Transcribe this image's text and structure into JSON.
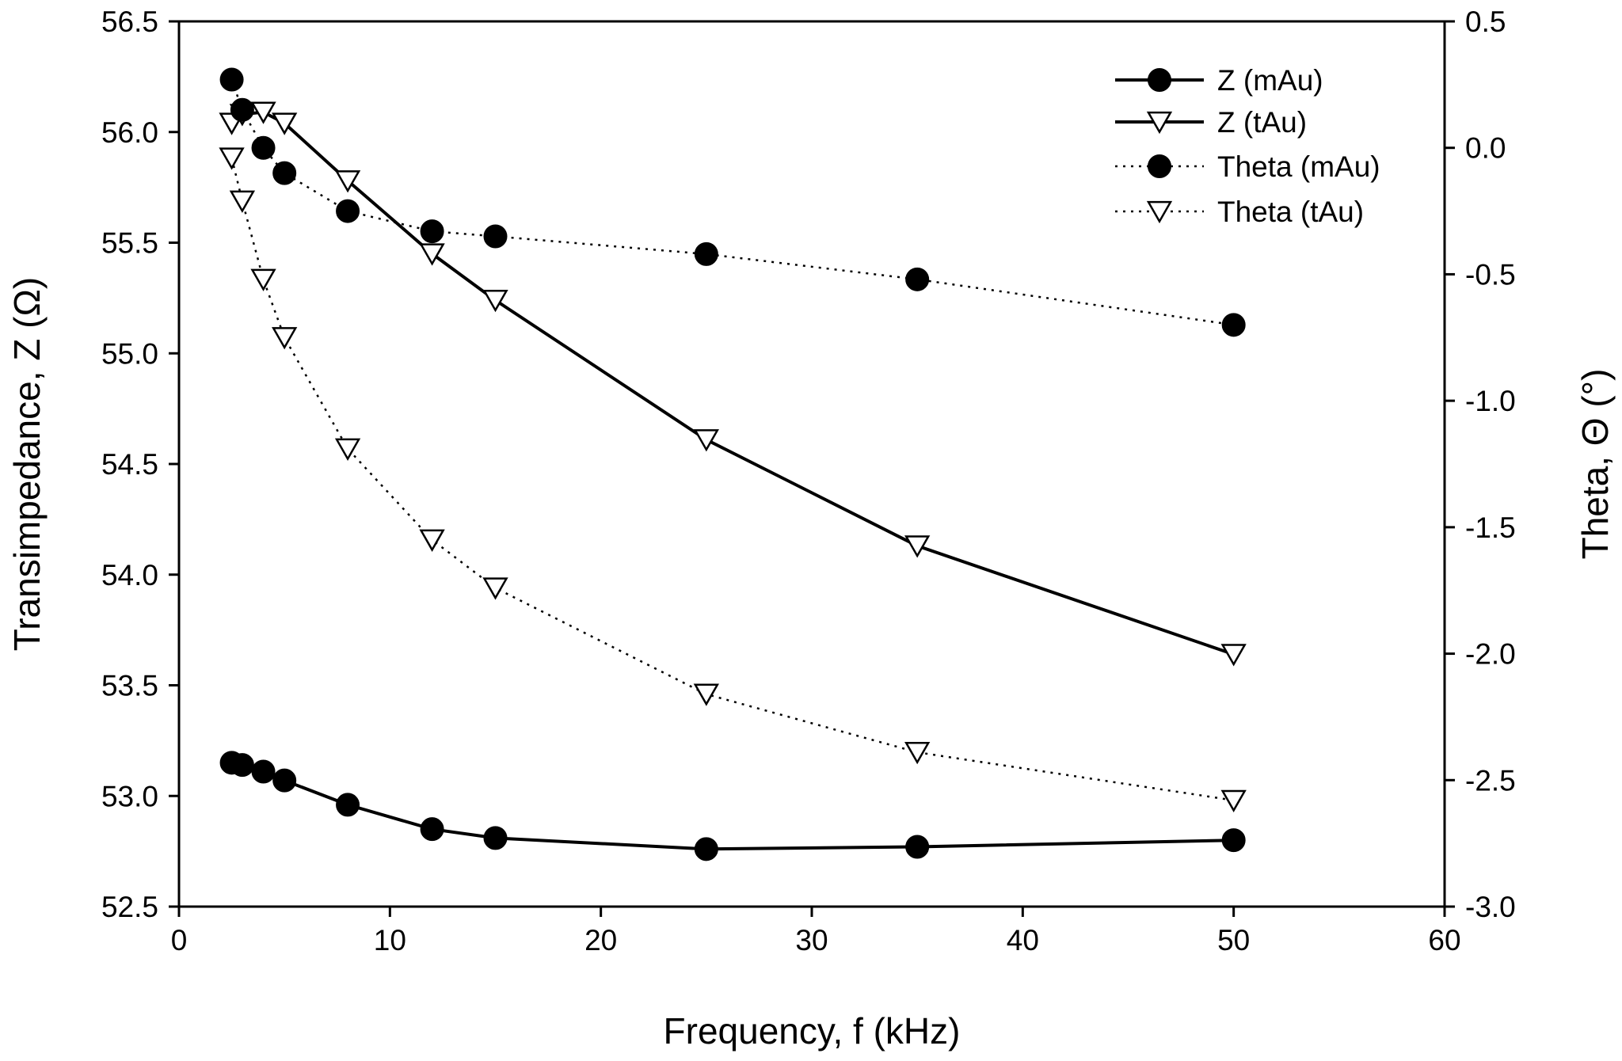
{
  "chart_data": {
    "type": "line",
    "xlabel": "Frequency, f  (kHz)",
    "ylabel_left": "Transimpedance, Z  (Ω)",
    "ylabel_right": "Theta, Θ (°)",
    "xlim": [
      0,
      60
    ],
    "ylim_left": [
      52.5,
      56.5
    ],
    "ylim_right": [
      -3.0,
      0.5
    ],
    "x_ticks": [
      "0",
      "10",
      "20",
      "30",
      "40",
      "50",
      "60"
    ],
    "y_left_ticks": [
      "52.5",
      "53.0",
      "53.5",
      "54.0",
      "54.5",
      "55.0",
      "55.5",
      "56.0",
      "56.5"
    ],
    "y_right_ticks": [
      "-3.0",
      "-2.5",
      "-2.0",
      "-1.5",
      "-1.0",
      "-0.5",
      "0.0",
      "0.5"
    ],
    "legend_position": "top-right",
    "series": [
      {
        "name": "Z (mAu)",
        "axis": "left",
        "line": "solid",
        "marker": "filled-circle",
        "x": [
          2.5,
          3,
          4,
          5,
          8,
          12,
          15,
          25,
          35,
          50
        ],
        "y": [
          53.15,
          53.14,
          53.11,
          53.07,
          52.96,
          52.85,
          52.81,
          52.76,
          52.77,
          52.8
        ]
      },
      {
        "name": "Z (tAu)",
        "axis": "left",
        "line": "solid",
        "marker": "open-triangle-down",
        "x": [
          2.5,
          3,
          4,
          5,
          8,
          12,
          15,
          25,
          35,
          50
        ],
        "y": [
          56.04,
          56.08,
          56.09,
          56.04,
          55.78,
          55.45,
          55.24,
          54.61,
          54.13,
          53.64
        ]
      },
      {
        "name": "Theta (mAu)",
        "axis": "right",
        "line": "dotted",
        "marker": "filled-circle",
        "x": [
          2.5,
          3,
          4,
          5,
          8,
          12,
          15,
          25,
          35,
          50
        ],
        "y": [
          0.27,
          0.15,
          0.0,
          -0.1,
          -0.25,
          -0.33,
          -0.35,
          -0.42,
          -0.52,
          -0.7
        ]
      },
      {
        "name": "Theta (tAu)",
        "axis": "right",
        "line": "dotted",
        "marker": "open-triangle-down",
        "x": [
          2.5,
          3,
          4,
          5,
          8,
          12,
          15,
          25,
          35,
          50
        ],
        "y": [
          -0.04,
          -0.21,
          -0.52,
          -0.75,
          -1.19,
          -1.55,
          -1.74,
          -2.16,
          -2.39,
          -2.58
        ]
      }
    ]
  }
}
